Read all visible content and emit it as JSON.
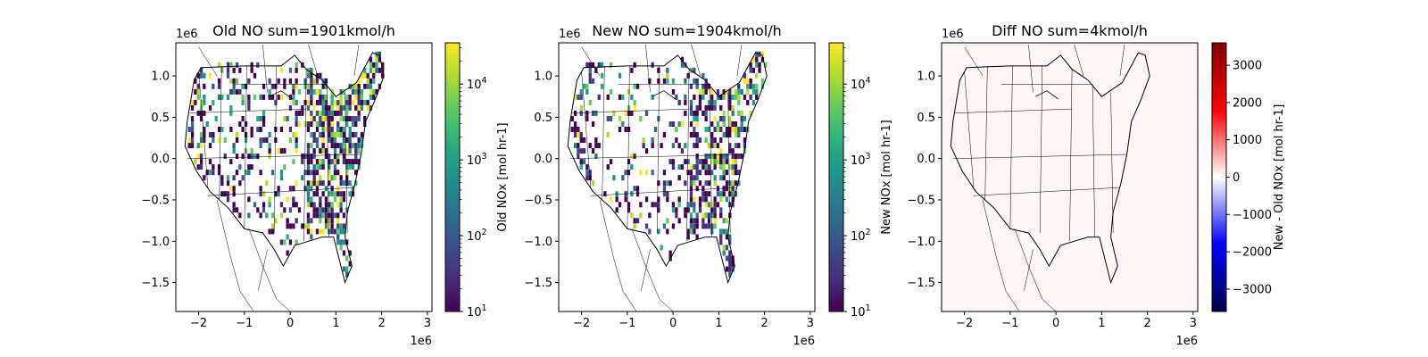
{
  "chart_data": [
    {
      "type": "heatmap",
      "title": "Old NO sum=1901kmol/h",
      "xlim": [
        -2.5,
        3.1
      ],
      "ylim": [
        -1.85,
        1.4
      ],
      "x_ticks": [
        -2,
        -1,
        0,
        1,
        2,
        3
      ],
      "y_ticks": [
        -1.5,
        -1.0,
        -0.5,
        0.0,
        0.5,
        1.0
      ],
      "x_tick_labels": [
        "−2",
        "−1",
        "0",
        "1",
        "2",
        "3"
      ],
      "y_tick_labels": [
        "−1.5",
        "−1.0",
        "−0.5",
        "0.0",
        "0.5",
        "1.0"
      ],
      "x_offset_label": "1e6",
      "y_offset_label": "1e6",
      "colorbar": {
        "label": "Old NOx [mol hr-1]",
        "scale": "log",
        "cmap": "viridis",
        "range": [
          10,
          35000
        ],
        "tick_base": "10",
        "tick_exponents": [
          "1",
          "2",
          "3",
          "4"
        ]
      }
    },
    {
      "type": "heatmap",
      "title": "New NO sum=1904kmol/h",
      "xlim": [
        -2.5,
        3.1
      ],
      "ylim": [
        -1.85,
        1.4
      ],
      "x_ticks": [
        -2,
        -1,
        0,
        1,
        2,
        3
      ],
      "y_ticks": [
        -1.5,
        -1.0,
        -0.5,
        0.0,
        0.5,
        1.0
      ],
      "x_tick_labels": [
        "−2",
        "−1",
        "0",
        "1",
        "2",
        "3"
      ],
      "y_tick_labels": [
        "−1.5",
        "−1.0",
        "−0.5",
        "0.0",
        "0.5",
        "1.0"
      ],
      "x_offset_label": "1e6",
      "y_offset_label": "1e6",
      "colorbar": {
        "label": "New NOx [mol hr-1]",
        "scale": "log",
        "cmap": "viridis",
        "range": [
          10,
          35000
        ],
        "tick_base": "10",
        "tick_exponents": [
          "1",
          "2",
          "3",
          "4"
        ]
      }
    },
    {
      "type": "heatmap",
      "title": "Diff NO sum=4kmol/h",
      "xlim": [
        -2.5,
        3.1
      ],
      "ylim": [
        -1.85,
        1.4
      ],
      "x_ticks": [
        -2,
        -1,
        0,
        1,
        2,
        3
      ],
      "y_ticks": [
        -1.5,
        -1.0,
        -0.5,
        0.0,
        0.5,
        1.0
      ],
      "x_tick_labels": [
        "−2",
        "−1",
        "0",
        "1",
        "2",
        "3"
      ],
      "y_tick_labels": [
        "−1.5",
        "−1.0",
        "−0.5",
        "0.0",
        "0.5",
        "1.0"
      ],
      "x_offset_label": "1e6",
      "y_offset_label": "1e6",
      "colorbar": {
        "label": "New - Old NOx [mol hr-1]",
        "scale": "linear",
        "cmap": "seismic",
        "range": [
          -3600,
          3600
        ],
        "ticks": [
          -3000,
          -2000,
          -1000,
          0,
          1000,
          2000,
          3000
        ],
        "tick_labels": [
          "−3000",
          "−2000",
          "−1000",
          "0",
          "1000",
          "2000",
          "3000"
        ]
      }
    }
  ]
}
